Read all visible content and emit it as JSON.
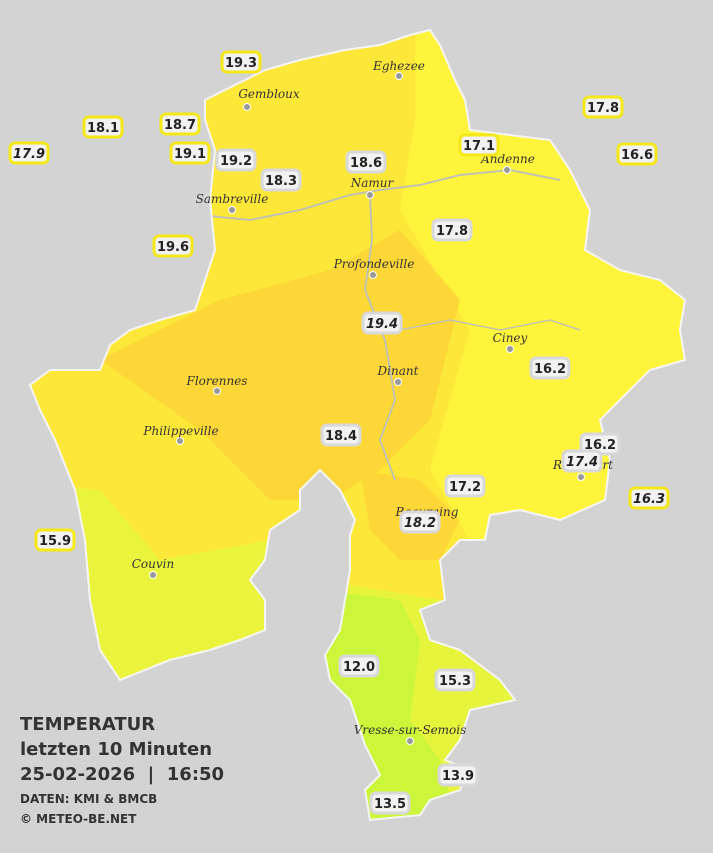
{
  "title": "TEMPERATUR",
  "subtitle": "letzten 10 Minuten",
  "datetime": "25-02-2026  |  16:50",
  "source": "DATEN: KMI & BMCB",
  "copyright": "© METEO-BE.NET",
  "cities": [
    "Eghezee",
    "Gembloux",
    "Andenne",
    "Namur",
    "Sambreville",
    "Profondeville",
    "Ciney",
    "Dinant",
    "Florennes",
    "Philippeville",
    "Couvin",
    "Beauraing",
    "Rochefort",
    "Vresse-sur-Semois"
  ],
  "stations": [
    "19.3",
    "18.1",
    "18.7",
    "19.1",
    "19.2",
    "18.3",
    "18.6",
    "17.1",
    "17.8",
    "16.6",
    "17.9",
    "19.6",
    "17.8",
    "19.4",
    "16.2",
    "18.4",
    "16.2",
    "17.4",
    "17.2",
    "18.2",
    "16.3",
    "15.9",
    "12.0",
    "15.3",
    "13.9",
    "13.5"
  ]
}
